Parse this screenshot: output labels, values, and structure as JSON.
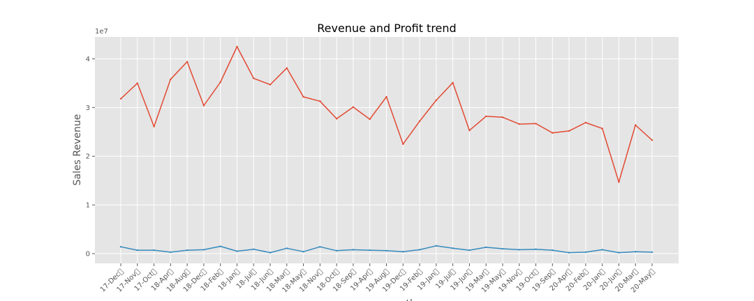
{
  "chart_data": {
    "type": "line",
    "title": "Revenue and Profit trend",
    "xlabel": "year_month",
    "ylabel": "Sales Revenue",
    "y_offset_label": "1e7",
    "ylim": [
      -0.2,
      4.45
    ],
    "yticks": [
      0,
      1,
      2,
      3,
      4
    ],
    "ytick_labels": [
      "0",
      "1",
      "2",
      "3",
      "4"
    ],
    "categories": [
      "17-Dec\u0000",
      "17-Nov\u0000",
      "17-Oct\u0000",
      "18-Apr\u0000",
      "18-Aug\u0000",
      "18-Dec\u0000",
      "18-Feb\u0000",
      "18-Jan\u0000",
      "18-Jul\u0000",
      "18-Jun\u0000",
      "18-Mar\u0000",
      "18-May\u0000",
      "18-Nov\u0000",
      "18-Oct\u0000",
      "18-Sep\u0000",
      "19-Apr\u0000",
      "19-Aug\u0000",
      "19-Dec\u0000",
      "19-Feb\u0000",
      "19-Jan\u0000",
      "19-Jul\u0000",
      "19-Jun\u0000",
      "19-Mar\u0000",
      "19-May\u0000",
      "19-Nov\u0000",
      "19-Oct\u0000",
      "19-Sep\u0000",
      "20-Apr\u0000",
      "20-Feb\u0000",
      "20-Jan\u0000",
      "20-Jun\u0000",
      "20-Mar\u0000",
      "20-May\u0000"
    ],
    "series": [
      {
        "name": "Revenue",
        "color": "#E24A33",
        "values": [
          3.18,
          3.5,
          2.61,
          3.58,
          3.94,
          3.04,
          3.52,
          4.25,
          3.6,
          3.47,
          3.81,
          3.22,
          3.13,
          2.77,
          3.01,
          2.76,
          3.22,
          2.25,
          2.72,
          3.15,
          3.51,
          2.53,
          2.82,
          2.8,
          2.66,
          2.67,
          2.48,
          2.52,
          2.69,
          2.57,
          1.47,
          2.64,
          2.33
        ]
      },
      {
        "name": "Profit",
        "color": "#348ABD",
        "values": [
          0.14,
          0.07,
          0.07,
          0.03,
          0.07,
          0.08,
          0.15,
          0.05,
          0.09,
          0.02,
          0.11,
          0.04,
          0.14,
          0.06,
          0.08,
          0.07,
          0.06,
          0.04,
          0.08,
          0.16,
          0.11,
          0.07,
          0.13,
          0.1,
          0.08,
          0.09,
          0.07,
          0.02,
          0.03,
          0.08,
          0.02,
          0.04,
          0.03
        ]
      }
    ],
    "grid": true
  }
}
